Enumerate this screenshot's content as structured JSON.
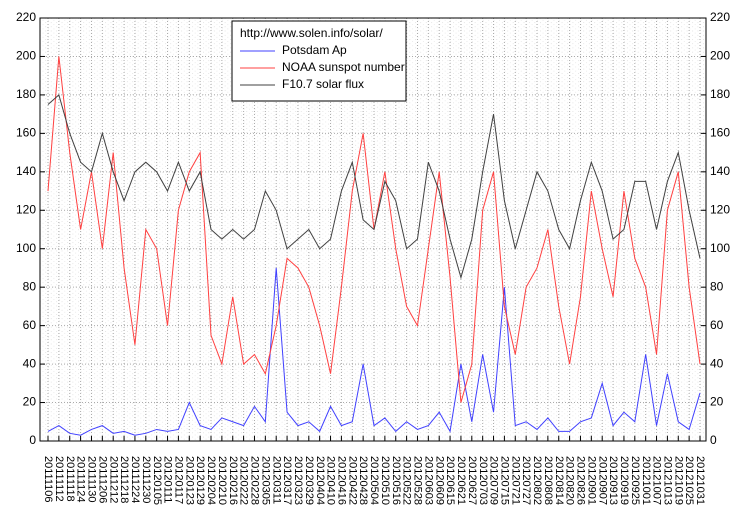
{
  "chart_data": {
    "type": "line",
    "legend_title": "http://www.solen.info/solar/",
    "categories": [
      "20111106",
      "20111112",
      "20111118",
      "20111124",
      "20111130",
      "20111206",
      "20111212",
      "20111218",
      "20111224",
      "20111230",
      "20120105",
      "20120111",
      "20120117",
      "20120123",
      "20120129",
      "20120204",
      "20120210",
      "20120216",
      "20120222",
      "20120228",
      "20120305",
      "20120311",
      "20120317",
      "20120323",
      "20120329",
      "20120404",
      "20120410",
      "20120416",
      "20120422",
      "20120428",
      "20120504",
      "20120510",
      "20120516",
      "20120522",
      "20120528",
      "20120603",
      "20120609",
      "20120615",
      "20120621",
      "20120627",
      "20120703",
      "20120709",
      "20120715",
      "20120721",
      "20120727",
      "20120802",
      "20120808",
      "20120814",
      "20120820",
      "20120826",
      "20120901",
      "20120907",
      "20120913",
      "20120919",
      "20120925",
      "20121001",
      "20121007",
      "20121013",
      "20121019",
      "20121025",
      "20121031"
    ],
    "series": [
      {
        "name": "Potsdam Ap",
        "color": "#4040ff",
        "values": [
          5,
          8,
          4,
          3,
          6,
          8,
          4,
          5,
          3,
          4,
          6,
          5,
          6,
          20,
          8,
          6,
          12,
          10,
          8,
          18,
          10,
          90,
          15,
          8,
          10,
          5,
          18,
          8,
          10,
          40,
          8,
          12,
          5,
          10,
          6,
          8,
          15,
          5,
          40,
          10,
          45,
          15,
          80,
          8,
          10,
          6,
          12,
          5,
          5,
          10,
          12,
          30,
          8,
          15,
          10,
          45,
          8,
          35,
          10,
          6,
          25
        ]
      },
      {
        "name": "NOAA sunspot number",
        "color": "#ff4040",
        "values": [
          130,
          200,
          150,
          110,
          140,
          100,
          150,
          90,
          50,
          110,
          100,
          60,
          120,
          140,
          150,
          55,
          40,
          75,
          40,
          45,
          35,
          60,
          95,
          90,
          80,
          60,
          35,
          80,
          130,
          160,
          110,
          140,
          100,
          70,
          60,
          100,
          140,
          85,
          20,
          40,
          120,
          140,
          70,
          45,
          80,
          90,
          110,
          70,
          40,
          75,
          130,
          100,
          75,
          130,
          95,
          80,
          45,
          120,
          140,
          80,
          40
        ]
      },
      {
        "name": "F10.7 solar flux",
        "color": "#404040",
        "values": [
          175,
          180,
          160,
          145,
          140,
          160,
          140,
          125,
          140,
          145,
          140,
          130,
          145,
          130,
          140,
          110,
          105,
          110,
          105,
          110,
          130,
          120,
          100,
          105,
          110,
          100,
          105,
          130,
          145,
          115,
          110,
          135,
          125,
          100,
          105,
          145,
          130,
          105,
          85,
          105,
          140,
          170,
          125,
          100,
          120,
          140,
          130,
          110,
          100,
          125,
          145,
          130,
          105,
          110,
          135,
          135,
          110,
          135,
          150,
          120,
          95
        ]
      }
    ],
    "ylim": [
      0,
      220
    ],
    "yticks": [
      0,
      20,
      40,
      60,
      80,
      100,
      120,
      140,
      160,
      180,
      200,
      220
    ],
    "grid": true
  }
}
